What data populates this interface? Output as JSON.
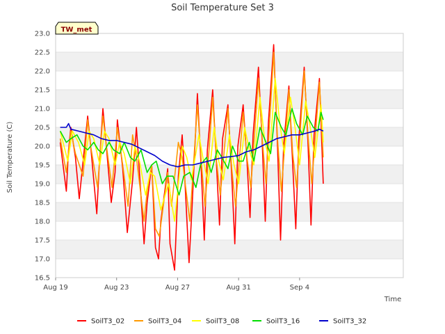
{
  "chart_data": {
    "type": "line",
    "title": "Soil Temperature Set 3",
    "xlabel": "Time",
    "ylabel": "Soil Temperature (C)",
    "ylim": [
      16.5,
      23.0
    ],
    "xlim": [
      0,
      22.8
    ],
    "x_unit": "days since Aug 19",
    "yticks": [
      "16.5",
      "17.0",
      "17.5",
      "18.0",
      "18.5",
      "19.0",
      "19.5",
      "20.0",
      "20.5",
      "21.0",
      "21.5",
      "22.0",
      "22.5",
      "23.0"
    ],
    "xticks": [
      {
        "label": "Aug 19",
        "x": 0
      },
      {
        "label": "Aug 23",
        "x": 4
      },
      {
        "label": "Aug 27",
        "x": 8
      },
      {
        "label": "Aug 31",
        "x": 12
      },
      {
        "label": "Sep 4",
        "x": 16
      }
    ],
    "grid": "horizontal bands",
    "legend_position": "bottom",
    "badge": "TW_met",
    "series": [
      {
        "name": "SoilT3_02",
        "color": "#ff0000",
        "x": [
          0.3,
          0.7,
          0.85,
          1.0,
          1.3,
          1.55,
          1.8,
          2.1,
          2.3,
          2.7,
          2.85,
          3.1,
          3.3,
          3.65,
          3.9,
          4.05,
          4.4,
          4.7,
          5.05,
          5.3,
          5.45,
          5.8,
          6.0,
          6.3,
          6.55,
          6.75,
          6.9,
          7.35,
          7.5,
          7.8,
          8.05,
          8.3,
          8.45,
          8.75,
          8.95,
          9.3,
          9.55,
          9.75,
          9.95,
          10.3,
          10.55,
          10.75,
          10.95,
          11.3,
          11.55,
          11.75,
          11.95,
          12.3,
          12.55,
          12.75,
          12.95,
          13.3,
          13.55,
          13.75,
          13.95,
          14.3,
          14.55,
          14.75,
          14.95,
          15.3,
          15.55,
          15.75,
          15.95,
          16.3,
          16.55,
          16.75,
          16.95,
          17.3,
          17.55
        ],
        "y": [
          20.1,
          18.8,
          19.9,
          20.5,
          19.7,
          18.6,
          19.6,
          20.8,
          20.0,
          18.2,
          19.4,
          21.0,
          20.1,
          18.5,
          19.3,
          20.7,
          19.4,
          17.7,
          19.1,
          20.5,
          19.6,
          17.4,
          18.5,
          19.5,
          17.3,
          17.0,
          18.0,
          19.4,
          17.4,
          16.7,
          19.2,
          20.3,
          19.3,
          16.9,
          18.4,
          21.4,
          19.4,
          17.5,
          19.9,
          21.5,
          19.5,
          17.9,
          20.2,
          21.1,
          19.2,
          17.4,
          20.0,
          21.1,
          19.6,
          18.1,
          20.3,
          22.1,
          20.1,
          18.0,
          20.6,
          22.7,
          20.0,
          17.5,
          20.0,
          21.6,
          19.5,
          17.8,
          20.2,
          22.1,
          20.1,
          17.9,
          20.3,
          21.8,
          19.0
        ]
      },
      {
        "name": "SoilT3_04",
        "color": "#ff9900",
        "x": [
          0.3,
          0.7,
          1.0,
          1.3,
          1.8,
          2.1,
          2.3,
          2.75,
          3.1,
          3.3,
          3.7,
          4.05,
          4.4,
          4.75,
          5.05,
          5.3,
          5.8,
          6.0,
          6.3,
          6.55,
          6.8,
          7.35,
          7.6,
          8.05,
          8.3,
          8.5,
          8.8,
          9.3,
          9.55,
          9.8,
          10.3,
          10.55,
          10.8,
          11.3,
          11.55,
          11.8,
          12.3,
          12.55,
          12.8,
          13.3,
          13.55,
          13.8,
          14.3,
          14.55,
          14.8,
          15.3,
          15.55,
          15.8,
          16.3,
          16.55,
          16.8,
          17.3,
          17.55
        ],
        "y": [
          20.2,
          19.3,
          20.4,
          19.8,
          19.2,
          20.7,
          20.0,
          18.9,
          20.8,
          20.1,
          18.9,
          20.5,
          19.5,
          18.4,
          20.3,
          19.7,
          18.0,
          18.8,
          19.5,
          17.8,
          17.6,
          19.3,
          18.4,
          20.1,
          19.7,
          19.0,
          18.0,
          21.1,
          19.6,
          18.4,
          21.3,
          19.6,
          18.7,
          21.0,
          19.4,
          18.4,
          20.9,
          19.7,
          18.9,
          21.8,
          20.2,
          19.0,
          22.5,
          20.2,
          18.8,
          21.5,
          19.8,
          18.9,
          22.0,
          20.3,
          19.0,
          21.7,
          19.7
        ]
      },
      {
        "name": "SoilT3_08",
        "color": "#ffff00",
        "x": [
          0.3,
          0.8,
          1.1,
          1.5,
          1.9,
          2.2,
          2.5,
          2.9,
          3.2,
          3.5,
          3.9,
          4.2,
          4.5,
          4.9,
          5.2,
          5.5,
          5.9,
          6.2,
          6.5,
          6.9,
          7.4,
          7.8,
          8.3,
          8.6,
          8.9,
          9.4,
          9.7,
          10.0,
          10.4,
          10.7,
          11.0,
          11.4,
          11.7,
          12.0,
          12.4,
          12.7,
          13.0,
          13.4,
          13.7,
          14.0,
          14.4,
          14.7,
          15.0,
          15.4,
          15.7,
          16.0,
          16.4,
          16.7,
          17.0,
          17.4,
          17.55
        ],
        "y": [
          20.4,
          19.6,
          20.4,
          20.1,
          19.5,
          20.4,
          20.2,
          19.5,
          20.4,
          20.2,
          19.5,
          20.1,
          19.8,
          19.0,
          20.0,
          19.6,
          18.7,
          19.3,
          19.2,
          18.3,
          19.0,
          18.0,
          20.0,
          19.7,
          19.1,
          20.3,
          19.6,
          19.0,
          20.5,
          19.6,
          19.1,
          20.3,
          19.5,
          19.0,
          20.5,
          19.9,
          19.5,
          21.3,
          20.2,
          19.6,
          21.8,
          20.6,
          19.8,
          21.3,
          20.5,
          19.5,
          21.2,
          20.5,
          19.7,
          21.1,
          20.1
        ]
      },
      {
        "name": "SoilT3_16",
        "color": "#00dd00",
        "x": [
          0.3,
          0.7,
          1.0,
          1.4,
          1.8,
          2.1,
          2.5,
          2.8,
          3.1,
          3.5,
          3.8,
          4.2,
          4.5,
          4.9,
          5.2,
          5.6,
          6.0,
          6.3,
          6.6,
          7.0,
          7.3,
          7.7,
          8.1,
          8.4,
          8.8,
          9.2,
          9.5,
          9.9,
          10.2,
          10.6,
          10.9,
          11.3,
          11.6,
          12.0,
          12.3,
          12.7,
          13.0,
          13.4,
          13.7,
          14.1,
          14.4,
          14.8,
          15.1,
          15.5,
          15.8,
          16.2,
          16.5,
          16.9,
          17.2,
          17.4,
          17.55
        ],
        "y": [
          20.4,
          20.1,
          20.2,
          20.3,
          20.0,
          19.9,
          20.1,
          19.9,
          19.8,
          20.1,
          19.9,
          19.8,
          20.1,
          19.7,
          19.6,
          19.9,
          19.3,
          19.5,
          19.6,
          19.0,
          19.2,
          19.2,
          18.7,
          19.2,
          19.3,
          18.9,
          19.5,
          19.7,
          19.3,
          19.9,
          19.7,
          19.4,
          20.0,
          19.6,
          19.6,
          20.1,
          19.6,
          20.5,
          20.2,
          19.8,
          20.9,
          20.5,
          20.3,
          21.0,
          20.6,
          20.3,
          20.8,
          20.5,
          20.4,
          20.9,
          20.7
        ]
      },
      {
        "name": "SoilT3_32",
        "color": "#0000cc",
        "x": [
          0.3,
          0.7,
          0.85,
          1.0,
          1.5,
          2.0,
          2.5,
          3.0,
          3.5,
          4.0,
          4.5,
          5.0,
          5.5,
          6.0,
          6.5,
          7.0,
          7.5,
          8.0,
          8.5,
          9.0,
          9.5,
          10.0,
          10.5,
          11.0,
          11.5,
          12.0,
          12.5,
          13.0,
          13.5,
          14.0,
          14.5,
          15.0,
          15.5,
          16.0,
          16.5,
          17.0,
          17.3,
          17.55
        ],
        "y": [
          20.5,
          20.5,
          20.6,
          20.45,
          20.4,
          20.35,
          20.3,
          20.2,
          20.15,
          20.15,
          20.1,
          20.05,
          19.95,
          19.85,
          19.75,
          19.6,
          19.5,
          19.45,
          19.5,
          19.5,
          19.55,
          19.6,
          19.65,
          19.7,
          19.72,
          19.75,
          19.85,
          19.9,
          20.0,
          20.1,
          20.2,
          20.25,
          20.3,
          20.3,
          20.35,
          20.4,
          20.45,
          20.4
        ]
      }
    ]
  }
}
